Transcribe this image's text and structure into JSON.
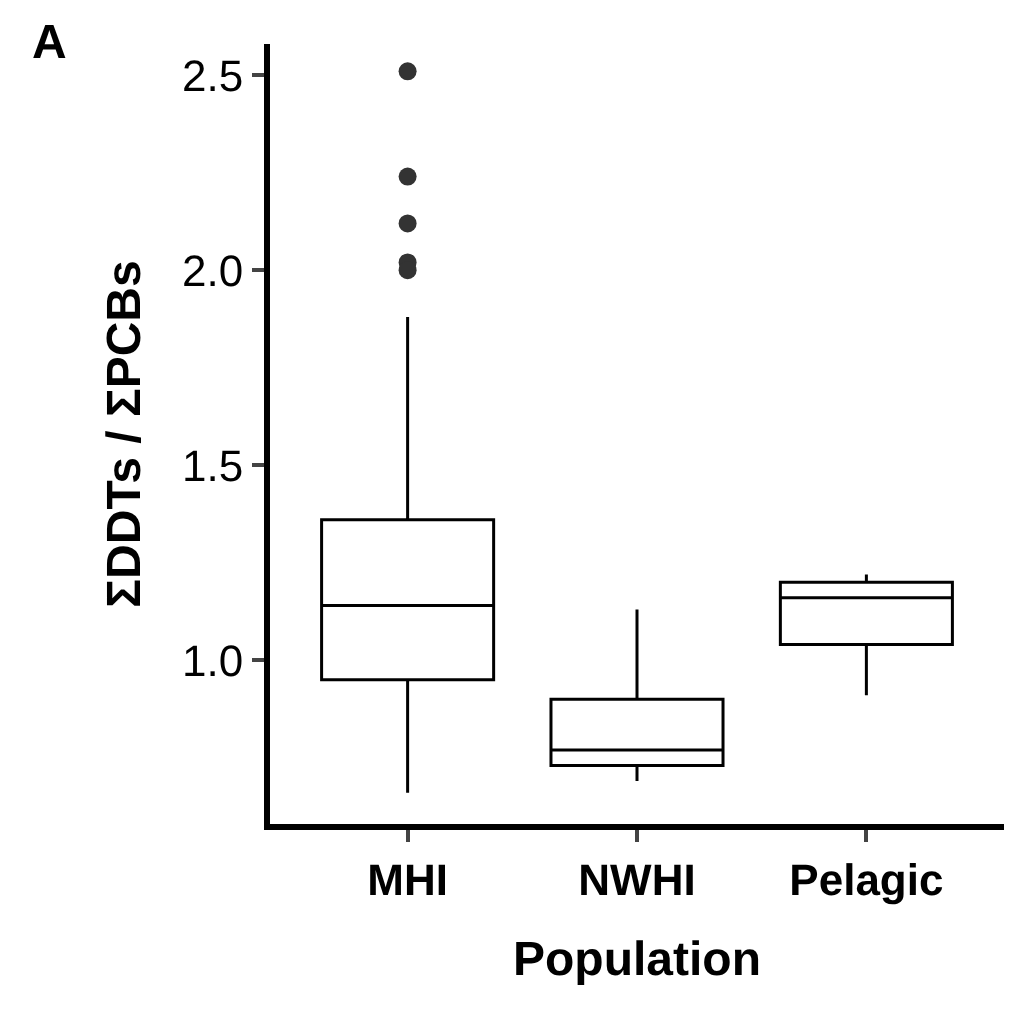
{
  "chart_data": {
    "type": "box",
    "xlabel": "Population",
    "ylabel": "ΣDDTs / ΣPCBs",
    "annotations": [
      "A"
    ],
    "categories": [
      "MHI",
      "NWHI",
      "Pelagic"
    ],
    "boxes": [
      {
        "low": 0.66,
        "q1": 0.95,
        "median": 1.14,
        "q3": 1.36,
        "high": 1.88,
        "outliers": [
          2.51,
          2.24,
          2.12,
          2.02,
          2.0
        ]
      },
      {
        "low": 0.69,
        "q1": 0.73,
        "median": 0.77,
        "q3": 0.9,
        "high": 1.13
      },
      {
        "low": 0.91,
        "q1": 1.04,
        "median": 1.16,
        "q3": 1.2,
        "high": 1.22
      }
    ],
    "color": "#ffffff",
    "ylim": [
      0.58,
      2.58
    ],
    "yticks": [
      {
        "value": 1,
        "label": "1.0"
      },
      1.5,
      {
        "value": 2,
        "label": "2.0"
      },
      2.5
    ],
    "grid": false
  }
}
